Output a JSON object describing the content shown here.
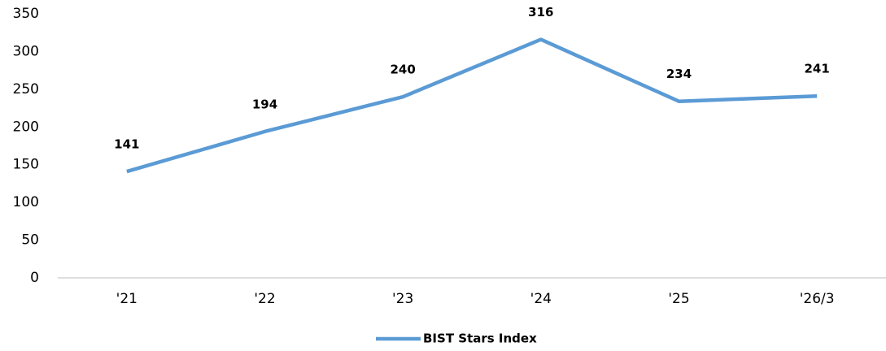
{
  "chart_data": {
    "type": "line",
    "categories": [
      "'21",
      "'22",
      "'23",
      "'24",
      "'25",
      "'26/3"
    ],
    "series": [
      {
        "name": "BIST Stars Index",
        "color": "#5b9bd5",
        "values": [
          141,
          194,
          240,
          316,
          234,
          241
        ]
      }
    ],
    "ylim": [
      0,
      350
    ],
    "yticks": [
      0,
      50,
      100,
      150,
      200,
      250,
      300,
      350
    ],
    "grid": false,
    "legend": "bottom"
  }
}
